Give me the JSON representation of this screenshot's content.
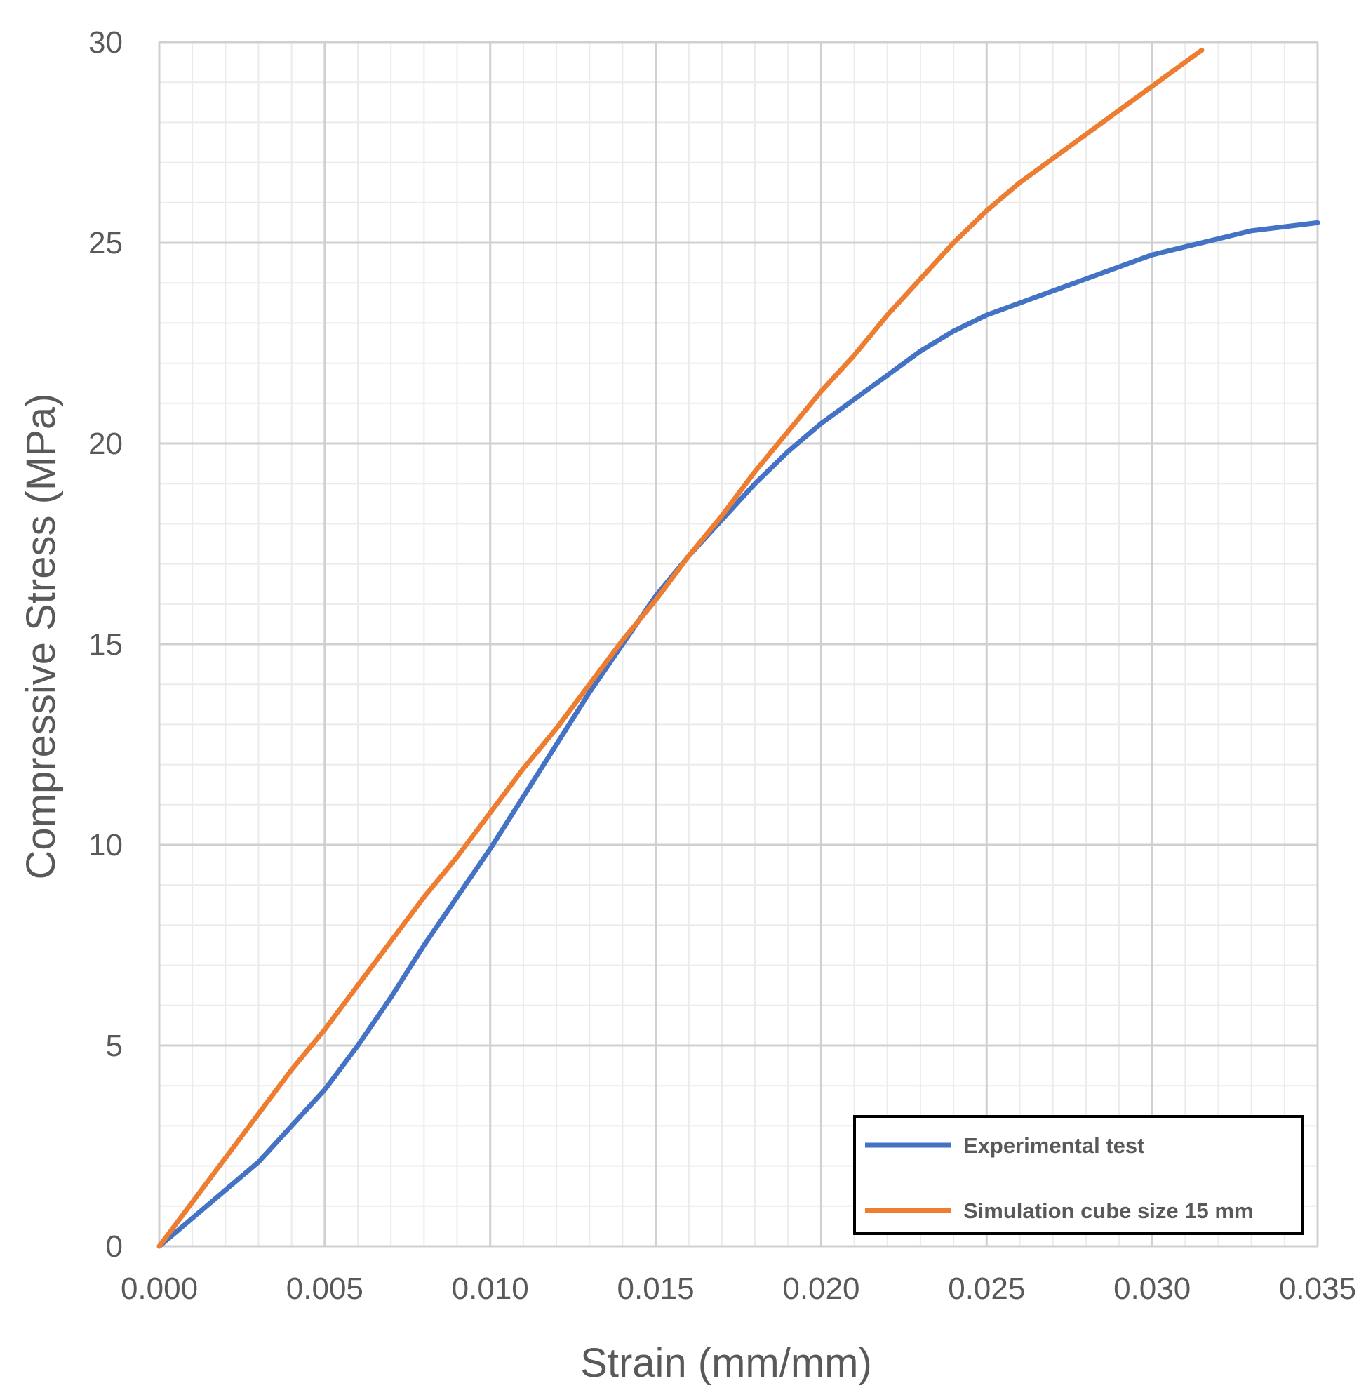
{
  "chart_data": {
    "type": "line",
    "title": "",
    "xlabel": "Strain (mm/mm)",
    "ylabel": "Compressive Stress (MPa)",
    "xlim": [
      0,
      0.035
    ],
    "ylim": [
      0,
      30
    ],
    "x_ticks": [
      "0.000",
      "0.005",
      "0.010",
      "0.015",
      "0.020",
      "0.025",
      "0.030",
      "0.035"
    ],
    "y_ticks": [
      "0",
      "5",
      "10",
      "15",
      "20",
      "25",
      "30"
    ],
    "x_tick_values": [
      0,
      0.005,
      0.01,
      0.015,
      0.02,
      0.025,
      0.03,
      0.035
    ],
    "y_tick_values": [
      0,
      5,
      10,
      15,
      20,
      25,
      30
    ],
    "grid": true,
    "legend_position": "bottom-right",
    "series": [
      {
        "name": "Experimental test",
        "color": "#4472C4",
        "x": [
          0,
          0.001,
          0.002,
          0.003,
          0.004,
          0.005,
          0.006,
          0.007,
          0.008,
          0.009,
          0.01,
          0.011,
          0.012,
          0.013,
          0.014,
          0.015,
          0.016,
          0.017,
          0.018,
          0.019,
          0.02,
          0.021,
          0.022,
          0.023,
          0.024,
          0.025,
          0.026,
          0.027,
          0.028,
          0.029,
          0.03,
          0.031,
          0.032,
          0.033,
          0.034,
          0.035
        ],
        "y": [
          0,
          0.7,
          1.4,
          2.1,
          3.0,
          3.9,
          5.0,
          6.2,
          7.5,
          8.7,
          9.9,
          11.2,
          12.5,
          13.8,
          15.0,
          16.2,
          17.2,
          18.1,
          19.0,
          19.8,
          20.5,
          21.1,
          21.7,
          22.3,
          22.8,
          23.2,
          23.5,
          23.8,
          24.1,
          24.4,
          24.7,
          24.9,
          25.1,
          25.3,
          25.4,
          25.5
        ]
      },
      {
        "name": "Simulation cube size 15 mm",
        "color": "#ED7D31",
        "x": [
          0,
          0.001,
          0.002,
          0.003,
          0.004,
          0.005,
          0.006,
          0.007,
          0.008,
          0.009,
          0.01,
          0.011,
          0.012,
          0.013,
          0.014,
          0.015,
          0.016,
          0.017,
          0.018,
          0.019,
          0.02,
          0.021,
          0.022,
          0.023,
          0.024,
          0.025,
          0.026,
          0.027,
          0.028,
          0.029,
          0.03,
          0.031,
          0.0315
        ],
        "y": [
          0,
          1.1,
          2.2,
          3.3,
          4.4,
          5.4,
          6.5,
          7.6,
          8.7,
          9.7,
          10.8,
          11.9,
          12.9,
          14.0,
          15.1,
          16.1,
          17.2,
          18.2,
          19.3,
          20.3,
          21.3,
          22.2,
          23.2,
          24.1,
          25.0,
          25.8,
          26.5,
          27.1,
          27.7,
          28.3,
          28.9,
          29.5,
          29.8
        ]
      }
    ]
  }
}
